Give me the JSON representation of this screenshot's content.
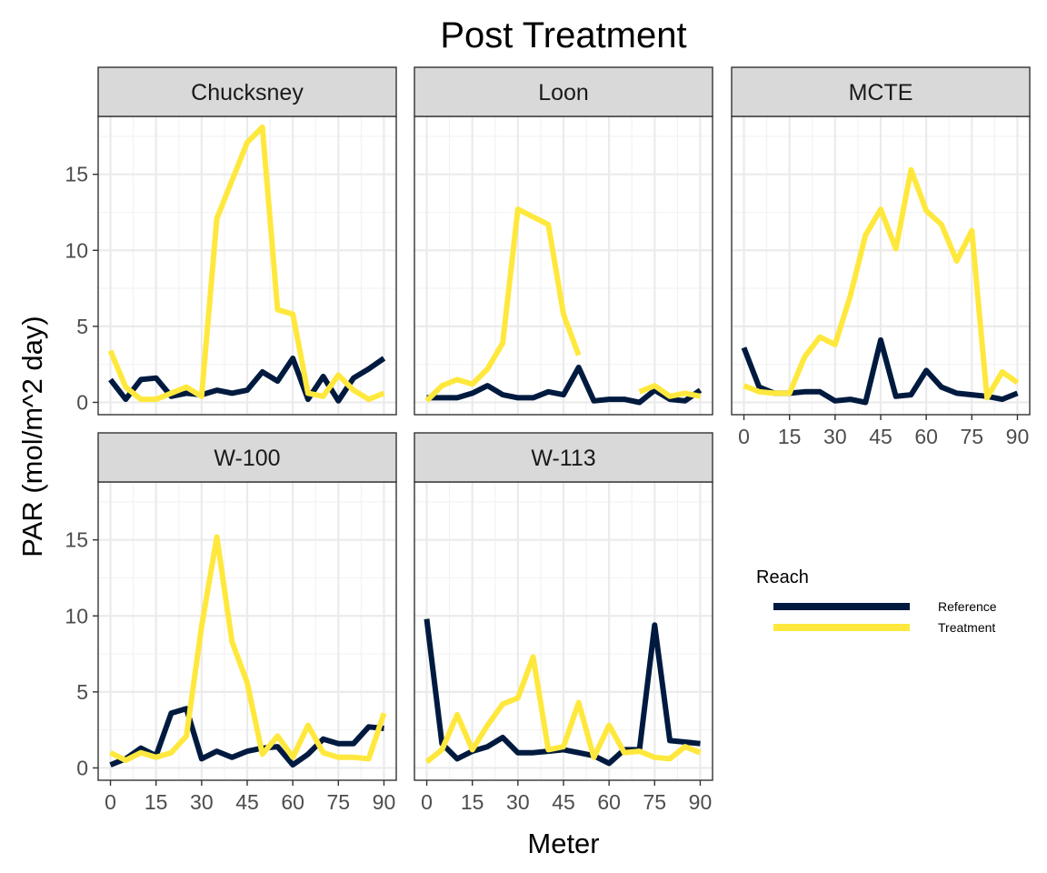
{
  "chart_data": {
    "type": "line",
    "title": "Post Treatment",
    "xlabel": "Meter",
    "ylabel": "PAR (mol/m^2 day)",
    "xlim": [
      0,
      90
    ],
    "ylim": [
      0,
      18
    ],
    "x_ticks": [
      0,
      15,
      30,
      45,
      60,
      75,
      90
    ],
    "y_ticks": [
      0,
      5,
      10,
      15
    ],
    "grid": true,
    "legend": {
      "title": "Reach",
      "placement": "right",
      "entries": [
        {
          "name": "Reference",
          "color": "#001a3f"
        },
        {
          "name": "Treatment",
          "color": "#ffe83d"
        }
      ]
    },
    "x": [
      0,
      5,
      10,
      15,
      20,
      25,
      30,
      35,
      40,
      45,
      50,
      55,
      60,
      65,
      70,
      75,
      80,
      85,
      90
    ],
    "facets": [
      {
        "name": "Chucksney",
        "series": [
          {
            "name": "Reference",
            "values": [
              1.5,
              0.2,
              1.5,
              1.6,
              0.4,
              0.6,
              0.5,
              0.8,
              0.6,
              0.8,
              2.0,
              1.4,
              2.9,
              0.2,
              1.7,
              0.1,
              1.6,
              2.2,
              2.9
            ]
          },
          {
            "name": "Treatment",
            "values": [
              3.4,
              1.0,
              0.2,
              0.2,
              0.6,
              1.0,
              0.4,
              12.1,
              14.6,
              17.1,
              18.1,
              6.1,
              5.8,
              0.6,
              0.4,
              1.8,
              0.8,
              0.2,
              0.6
            ]
          }
        ]
      },
      {
        "name": "Loon",
        "series": [
          {
            "name": "Reference",
            "values": [
              0.3,
              0.3,
              0.3,
              0.6,
              1.1,
              0.5,
              0.3,
              0.3,
              0.7,
              0.5,
              2.3,
              0.1,
              0.2,
              0.2,
              0.0,
              0.8,
              0.2,
              0.1,
              0.8
            ]
          },
          {
            "name": "Treatment",
            "values": [
              0.1,
              1.1,
              1.5,
              1.2,
              2.2,
              3.9,
              12.7,
              12.2,
              11.7,
              5.8,
              3.1,
              null,
              null,
              null,
              0.7,
              1.1,
              0.4,
              0.6,
              0.4
            ]
          }
        ]
      },
      {
        "name": "MCTE",
        "series": [
          {
            "name": "Reference",
            "values": [
              3.6,
              1.0,
              0.6,
              0.6,
              0.7,
              0.7,
              0.1,
              0.2,
              0.0,
              4.1,
              0.4,
              0.5,
              2.1,
              1.0,
              0.6,
              0.5,
              0.4,
              0.2,
              0.6
            ]
          },
          {
            "name": "Treatment",
            "values": [
              1.1,
              0.7,
              0.6,
              0.6,
              3.0,
              4.3,
              3.8,
              7.0,
              11.0,
              12.7,
              10.1,
              15.3,
              12.6,
              11.7,
              9.3,
              11.3,
              0.3,
              2.0,
              1.3
            ]
          }
        ]
      },
      {
        "name": "W-100",
        "series": [
          {
            "name": "Reference",
            "values": [
              0.2,
              0.6,
              1.3,
              0.8,
              3.6,
              3.9,
              0.6,
              1.1,
              0.7,
              1.1,
              1.3,
              1.4,
              0.2,
              0.9,
              1.9,
              1.6,
              1.6,
              2.7,
              2.6
            ]
          },
          {
            "name": "Treatment",
            "values": [
              1.0,
              0.5,
              1.0,
              0.7,
              1.0,
              2.1,
              9.3,
              15.2,
              8.3,
              5.6,
              0.9,
              2.1,
              0.7,
              2.8,
              1.0,
              0.7,
              0.7,
              0.6,
              3.6
            ]
          }
        ]
      },
      {
        "name": "W-113",
        "series": [
          {
            "name": "Reference",
            "values": [
              9.8,
              1.6,
              0.6,
              1.1,
              1.4,
              2.0,
              1.0,
              1.0,
              1.1,
              1.2,
              1.0,
              0.8,
              0.3,
              1.2,
              1.2,
              9.4,
              1.8,
              1.7,
              1.6
            ]
          },
          {
            "name": "Treatment",
            "values": [
              0.4,
              1.2,
              3.5,
              1.2,
              2.8,
              4.2,
              4.6,
              7.3,
              1.2,
              1.4,
              4.3,
              0.7,
              2.8,
              1.0,
              1.1,
              0.7,
              0.6,
              1.4,
              1.0
            ]
          }
        ]
      }
    ]
  }
}
